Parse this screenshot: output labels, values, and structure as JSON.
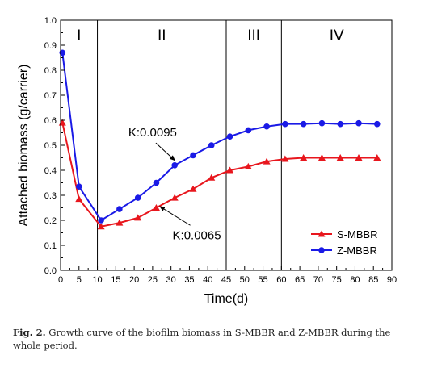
{
  "chart_data": {
    "type": "line",
    "xlabel": "Time(d)",
    "ylabel": "Attached biomass (g/carrier)",
    "xlim": [
      0,
      90
    ],
    "ylim": [
      0.0,
      1.0
    ],
    "xticks": [
      0,
      5,
      10,
      15,
      20,
      25,
      30,
      35,
      40,
      45,
      50,
      55,
      60,
      65,
      70,
      75,
      80,
      85,
      90
    ],
    "yticks": [
      "0.0",
      "0.1",
      "0.2",
      "0.3",
      "0.4",
      "0.5",
      "0.6",
      "0.7",
      "0.8",
      "0.9",
      "1.0"
    ],
    "phases": [
      {
        "label": "I",
        "start": 0,
        "end": 10
      },
      {
        "label": "II",
        "start": 10,
        "end": 45
      },
      {
        "label": "III",
        "start": 45,
        "end": 60
      },
      {
        "label": "IV",
        "start": 60,
        "end": 90
      }
    ],
    "phase_boundaries": [
      10,
      45,
      60
    ],
    "series": [
      {
        "name": "S-MBBR",
        "color": "#e8161d",
        "marker": "triangle",
        "x": [
          0.5,
          5,
          11,
          16,
          21,
          26,
          31,
          36,
          41,
          46,
          51,
          56,
          61,
          66,
          71,
          76,
          81,
          86
        ],
        "y": [
          0.59,
          0.285,
          0.175,
          0.19,
          0.21,
          0.25,
          0.29,
          0.325,
          0.37,
          0.4,
          0.415,
          0.435,
          0.445,
          0.45,
          0.45,
          0.45,
          0.45,
          0.45
        ]
      },
      {
        "name": "Z-MBBR",
        "color": "#1a1ae6",
        "marker": "circle",
        "x": [
          0.5,
          5,
          11,
          16,
          21,
          26,
          31,
          36,
          41,
          46,
          51,
          56,
          61,
          66,
          71,
          76,
          81,
          86
        ],
        "y": [
          0.87,
          0.335,
          0.2,
          0.245,
          0.29,
          0.35,
          0.42,
          0.46,
          0.5,
          0.535,
          0.56,
          0.575,
          0.585,
          0.585,
          0.588,
          0.585,
          0.588,
          0.585
        ]
      }
    ],
    "annotations": [
      {
        "text": "K:0.0095",
        "x": 25,
        "y": 0.535,
        "arrow_to_x": 31,
        "arrow_to_y": 0.44
      },
      {
        "text": "K:0.0065",
        "x": 37,
        "y": 0.125,
        "arrow_to_x": 27,
        "arrow_to_y": 0.255
      }
    ],
    "legend_placement": "bottom-right"
  },
  "caption": {
    "label": "Fig. 2.",
    "text": "Growth curve of the biofilm biomass in S-MBBR and Z-MBBR during the whole period."
  }
}
